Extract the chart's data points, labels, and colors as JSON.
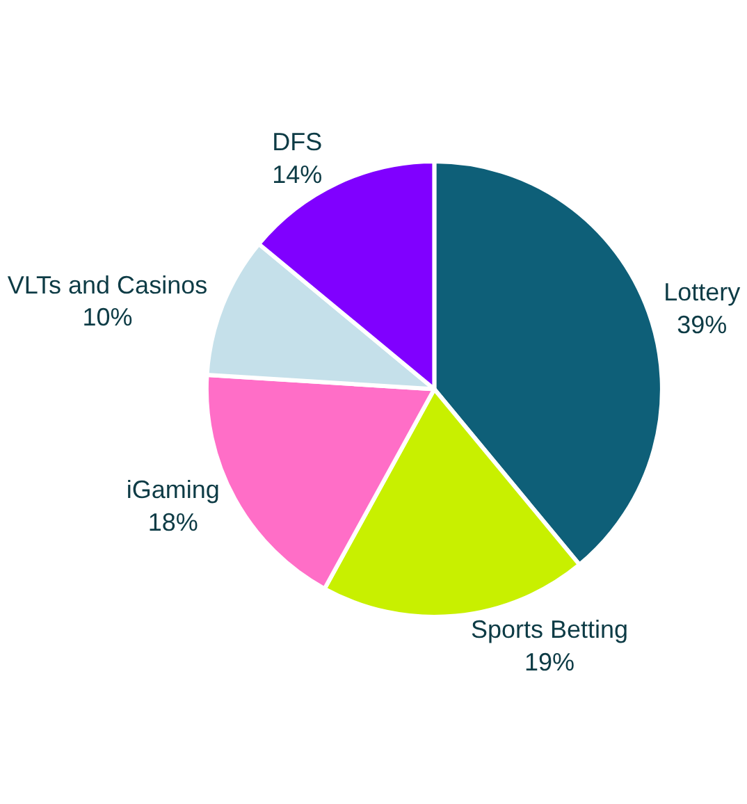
{
  "chart_data": {
    "type": "pie",
    "categories": [
      "Lottery",
      "Sports Betting",
      "iGaming",
      "VLTs and Casinos",
      "DFS"
    ],
    "values": [
      39,
      19,
      18,
      10,
      14
    ],
    "value_labels": [
      "39%",
      "19%",
      "18%",
      "10%",
      "14%"
    ],
    "colors": [
      "#0e5f78",
      "#c8f000",
      "#ff6ec7",
      "#c5e0ea",
      "#8000ff"
    ],
    "legend": false
  }
}
